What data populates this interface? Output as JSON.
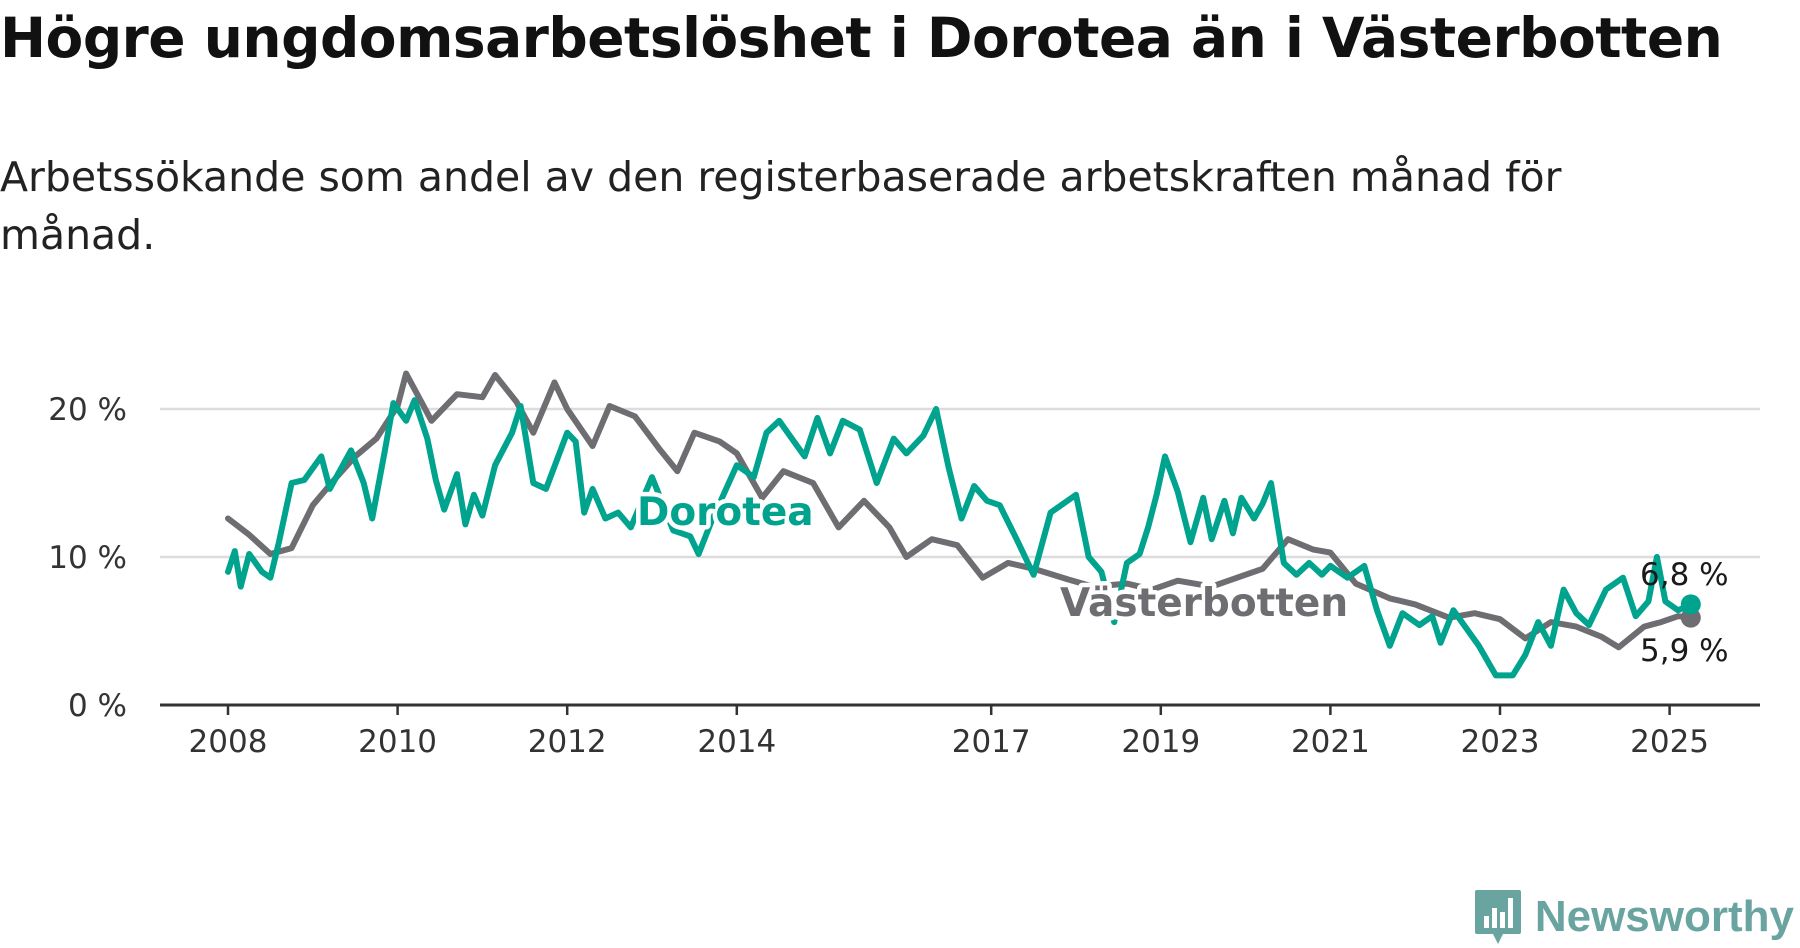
{
  "title": "Högre ungdomsarbetslöshet i Dorotea än i Västerbotten",
  "subtitle": "Arbetssökande som andel av den registerbaserade arbetskraften månad för månad.",
  "brand": {
    "name": "Newsworthy",
    "color": "#6aa4a0",
    "icon": "bar-chart-bubble-icon"
  },
  "chart_data": {
    "type": "line",
    "title": "Högre ungdomsarbetslöshet i Dorotea än i Västerbotten",
    "subtitle": "Arbetssökande som andel av den registerbaserade arbetskraften månad för månad.",
    "xlabel": "",
    "ylabel": "",
    "ylim": [
      0,
      23
    ],
    "y_ticks": [
      0,
      10,
      20
    ],
    "y_tick_labels": [
      "0 %",
      "10 %",
      "20 %"
    ],
    "x_ticks": [
      2008,
      2010,
      2012,
      2014,
      2017,
      2019,
      2021,
      2023,
      2025
    ],
    "x_tick_labels": [
      "2008",
      "2010",
      "2012",
      "2014",
      "2017",
      "2019",
      "2021",
      "2023",
      "2025"
    ],
    "x_range": [
      2008.0,
      2025.25
    ],
    "grid": true,
    "legend": "inline labels",
    "series": [
      {
        "name": "Västerbotten",
        "color": "#6e6e72",
        "end_label": "5,9 %",
        "points": [
          [
            2008.0,
            12.6
          ],
          [
            2008.25,
            11.5
          ],
          [
            2008.5,
            10.2
          ],
          [
            2008.75,
            10.6
          ],
          [
            2009.0,
            13.5
          ],
          [
            2009.25,
            15.2
          ],
          [
            2009.5,
            16.8
          ],
          [
            2009.75,
            18.0
          ],
          [
            2010.0,
            20.2
          ],
          [
            2010.1,
            22.4
          ],
          [
            2010.4,
            19.2
          ],
          [
            2010.7,
            21.0
          ],
          [
            2011.0,
            20.8
          ],
          [
            2011.15,
            22.3
          ],
          [
            2011.4,
            20.5
          ],
          [
            2011.6,
            18.4
          ],
          [
            2011.85,
            21.8
          ],
          [
            2012.0,
            20.0
          ],
          [
            2012.3,
            17.5
          ],
          [
            2012.5,
            20.2
          ],
          [
            2012.8,
            19.5
          ],
          [
            2013.1,
            17.2
          ],
          [
            2013.3,
            15.8
          ],
          [
            2013.5,
            18.4
          ],
          [
            2013.8,
            17.8
          ],
          [
            2014.0,
            17.0
          ],
          [
            2014.3,
            14.0
          ],
          [
            2014.55,
            15.8
          ],
          [
            2014.9,
            15.0
          ],
          [
            2015.2,
            12.0
          ],
          [
            2015.5,
            13.8
          ],
          [
            2015.8,
            12.0
          ],
          [
            2016.0,
            10.0
          ],
          [
            2016.3,
            11.2
          ],
          [
            2016.6,
            10.8
          ],
          [
            2016.9,
            8.6
          ],
          [
            2017.2,
            9.6
          ],
          [
            2017.5,
            9.2
          ],
          [
            2017.9,
            8.5
          ],
          [
            2018.2,
            8.0
          ],
          [
            2018.6,
            8.2
          ],
          [
            2018.9,
            7.8
          ],
          [
            2019.2,
            8.4
          ],
          [
            2019.6,
            8.0
          ],
          [
            2019.9,
            8.6
          ],
          [
            2020.2,
            9.2
          ],
          [
            2020.5,
            11.2
          ],
          [
            2020.8,
            10.5
          ],
          [
            2021.0,
            10.3
          ],
          [
            2021.3,
            8.2
          ],
          [
            2021.7,
            7.2
          ],
          [
            2022.0,
            6.8
          ],
          [
            2022.4,
            5.9
          ],
          [
            2022.7,
            6.2
          ],
          [
            2023.0,
            5.8
          ],
          [
            2023.3,
            4.5
          ],
          [
            2023.6,
            5.6
          ],
          [
            2023.9,
            5.3
          ],
          [
            2024.2,
            4.6
          ],
          [
            2024.4,
            3.9
          ],
          [
            2024.7,
            5.3
          ],
          [
            2024.9,
            5.6
          ],
          [
            2025.1,
            6.0
          ],
          [
            2025.25,
            5.9
          ]
        ]
      },
      {
        "name": "Dorotea",
        "color": "#00a38e",
        "end_label": "6,8 %",
        "points": [
          [
            2008.0,
            9.0
          ],
          [
            2008.08,
            10.4
          ],
          [
            2008.15,
            8.0
          ],
          [
            2008.25,
            10.2
          ],
          [
            2008.4,
            9.0
          ],
          [
            2008.5,
            8.6
          ],
          [
            2008.6,
            11.0
          ],
          [
            2008.75,
            15.0
          ],
          [
            2008.9,
            15.2
          ],
          [
            2009.1,
            16.8
          ],
          [
            2009.2,
            14.6
          ],
          [
            2009.45,
            17.2
          ],
          [
            2009.6,
            15.0
          ],
          [
            2009.7,
            12.6
          ],
          [
            2009.85,
            17.2
          ],
          [
            2009.95,
            20.4
          ],
          [
            2010.1,
            19.2
          ],
          [
            2010.2,
            20.6
          ],
          [
            2010.35,
            18.0
          ],
          [
            2010.45,
            15.2
          ],
          [
            2010.55,
            13.2
          ],
          [
            2010.7,
            15.6
          ],
          [
            2010.8,
            12.2
          ],
          [
            2010.9,
            14.2
          ],
          [
            2011.0,
            12.8
          ],
          [
            2011.15,
            16.2
          ],
          [
            2011.35,
            18.4
          ],
          [
            2011.45,
            20.2
          ],
          [
            2011.6,
            15.0
          ],
          [
            2011.75,
            14.6
          ],
          [
            2012.0,
            18.4
          ],
          [
            2012.1,
            17.8
          ],
          [
            2012.2,
            13.0
          ],
          [
            2012.3,
            14.6
          ],
          [
            2012.45,
            12.6
          ],
          [
            2012.6,
            13.0
          ],
          [
            2012.75,
            12.0
          ],
          [
            2013.0,
            15.4
          ],
          [
            2013.25,
            11.8
          ],
          [
            2013.45,
            11.4
          ],
          [
            2013.55,
            10.2
          ],
          [
            2013.7,
            12.4
          ],
          [
            2014.0,
            16.2
          ],
          [
            2014.2,
            15.4
          ],
          [
            2014.35,
            18.4
          ],
          [
            2014.5,
            19.2
          ],
          [
            2014.65,
            18.0
          ],
          [
            2014.8,
            16.8
          ],
          [
            2014.95,
            19.4
          ],
          [
            2015.1,
            17.0
          ],
          [
            2015.25,
            19.2
          ],
          [
            2015.45,
            18.6
          ],
          [
            2015.65,
            15.0
          ],
          [
            2015.85,
            18.0
          ],
          [
            2016.0,
            17.0
          ],
          [
            2016.2,
            18.2
          ],
          [
            2016.35,
            20.0
          ],
          [
            2016.5,
            16.0
          ],
          [
            2016.65,
            12.6
          ],
          [
            2016.8,
            14.8
          ],
          [
            2016.95,
            13.8
          ],
          [
            2017.1,
            13.5
          ],
          [
            2017.3,
            11.2
          ],
          [
            2017.5,
            8.8
          ],
          [
            2017.7,
            13.0
          ],
          [
            2017.85,
            13.6
          ],
          [
            2018.0,
            14.2
          ],
          [
            2018.15,
            10.0
          ],
          [
            2018.3,
            9.0
          ],
          [
            2018.45,
            5.6
          ],
          [
            2018.6,
            9.6
          ],
          [
            2018.75,
            10.2
          ],
          [
            2018.85,
            12.0
          ],
          [
            2018.95,
            14.2
          ],
          [
            2019.05,
            16.8
          ],
          [
            2019.2,
            14.4
          ],
          [
            2019.35,
            11.0
          ],
          [
            2019.5,
            14.0
          ],
          [
            2019.6,
            11.2
          ],
          [
            2019.75,
            13.8
          ],
          [
            2019.85,
            11.6
          ],
          [
            2019.95,
            14.0
          ],
          [
            2020.1,
            12.6
          ],
          [
            2020.2,
            13.6
          ],
          [
            2020.3,
            15.0
          ],
          [
            2020.45,
            9.6
          ],
          [
            2020.6,
            8.8
          ],
          [
            2020.75,
            9.6
          ],
          [
            2020.9,
            8.8
          ],
          [
            2021.0,
            9.4
          ],
          [
            2021.2,
            8.6
          ],
          [
            2021.4,
            9.4
          ],
          [
            2021.55,
            6.4
          ],
          [
            2021.7,
            4.0
          ],
          [
            2021.85,
            6.2
          ],
          [
            2022.05,
            5.4
          ],
          [
            2022.2,
            6.0
          ],
          [
            2022.3,
            4.2
          ],
          [
            2022.45,
            6.4
          ],
          [
            2022.6,
            5.2
          ],
          [
            2022.75,
            4.0
          ],
          [
            2022.95,
            2.0
          ],
          [
            2023.15,
            2.0
          ],
          [
            2023.3,
            3.4
          ],
          [
            2023.45,
            5.6
          ],
          [
            2023.6,
            4.0
          ],
          [
            2023.75,
            7.8
          ],
          [
            2023.9,
            6.2
          ],
          [
            2024.05,
            5.4
          ],
          [
            2024.25,
            7.8
          ],
          [
            2024.45,
            8.6
          ],
          [
            2024.6,
            6.0
          ],
          [
            2024.75,
            7.0
          ],
          [
            2024.85,
            10.0
          ],
          [
            2024.95,
            7.0
          ],
          [
            2025.1,
            6.4
          ],
          [
            2025.25,
            6.8
          ]
        ]
      }
    ]
  }
}
